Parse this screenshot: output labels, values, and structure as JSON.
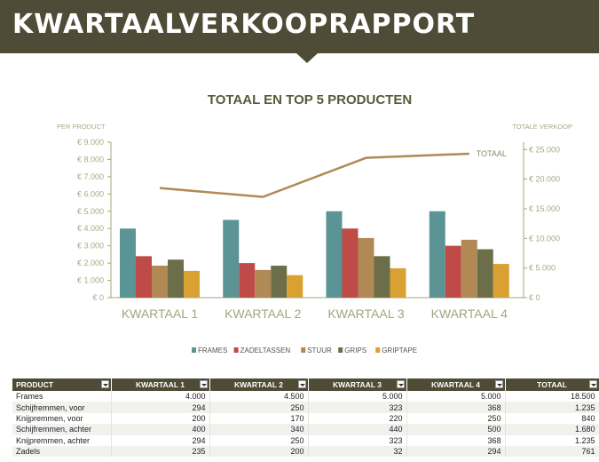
{
  "header": {
    "title": "KWARTAALVERKOOPRAPPORT"
  },
  "chart_data": {
    "type": "bar",
    "title": "TOTAAL EN TOP 5 PRODUCTEN",
    "ylabel_left": "PER PRODUCT",
    "ylabel_right": "TOTALE VERKOOP",
    "categories": [
      "KWARTAAL 1",
      "KWARTAAL 2",
      "KWARTAAL 3",
      "KWARTAAL 4"
    ],
    "left_ticks": [
      "€ 0",
      "€ 1.000",
      "€ 2.000",
      "€ 3.000",
      "€ 4.000",
      "€ 5.000",
      "€ 6.000",
      "€ 7.000",
      "€ 8.000",
      "€ 9.000"
    ],
    "right_ticks": [
      "€ 0",
      "€ 5.000",
      "€ 10.000",
      "€ 15.000",
      "€ 20.000",
      "€ 25.000"
    ],
    "ylim_left": [
      0,
      9000
    ],
    "ylim_right": [
      0,
      26250
    ],
    "series": [
      {
        "name": "FRAMES",
        "color": "#5b9494",
        "values": [
          4000,
          4500,
          5000,
          5000
        ]
      },
      {
        "name": "ZADELTASSEN",
        "color": "#be4b48",
        "values": [
          2400,
          2000,
          4000,
          3000
        ]
      },
      {
        "name": "STUUR",
        "color": "#b08955",
        "values": [
          1850,
          1600,
          3450,
          3350
        ]
      },
      {
        "name": "GRIPS",
        "color": "#6b6e48",
        "values": [
          2200,
          1850,
          2400,
          2800
        ]
      },
      {
        "name": "GRIPTAPE",
        "color": "#d9a131",
        "values": [
          1550,
          1300,
          1700,
          1950
        ]
      }
    ],
    "line_series": {
      "name": "TOTAAL",
      "color": "#b08955",
      "values": [
        18500,
        17000,
        23600,
        24300
      ]
    }
  },
  "table": {
    "columns": [
      "PRODUCT",
      "KWARTAAL 1",
      "KWARTAAL 2",
      "KWARTAAL 3",
      "KWARTAAL 4",
      "TOTAAL"
    ],
    "rows": [
      [
        "Frames",
        "4.000",
        "4.500",
        "5.000",
        "5.000",
        "18.500"
      ],
      [
        "Schijfremmen, voor",
        "294",
        "250",
        "323",
        "368",
        "1.235"
      ],
      [
        "Knijpremmen, voor",
        "200",
        "170",
        "220",
        "250",
        "840"
      ],
      [
        "Schijfremmen, achter",
        "400",
        "340",
        "440",
        "500",
        "1.680"
      ],
      [
        "Knijpremmen, achter",
        "294",
        "250",
        "323",
        "368",
        "1.235"
      ],
      [
        "Zadels",
        "235",
        "200",
        "32",
        "294",
        "761"
      ]
    ]
  }
}
